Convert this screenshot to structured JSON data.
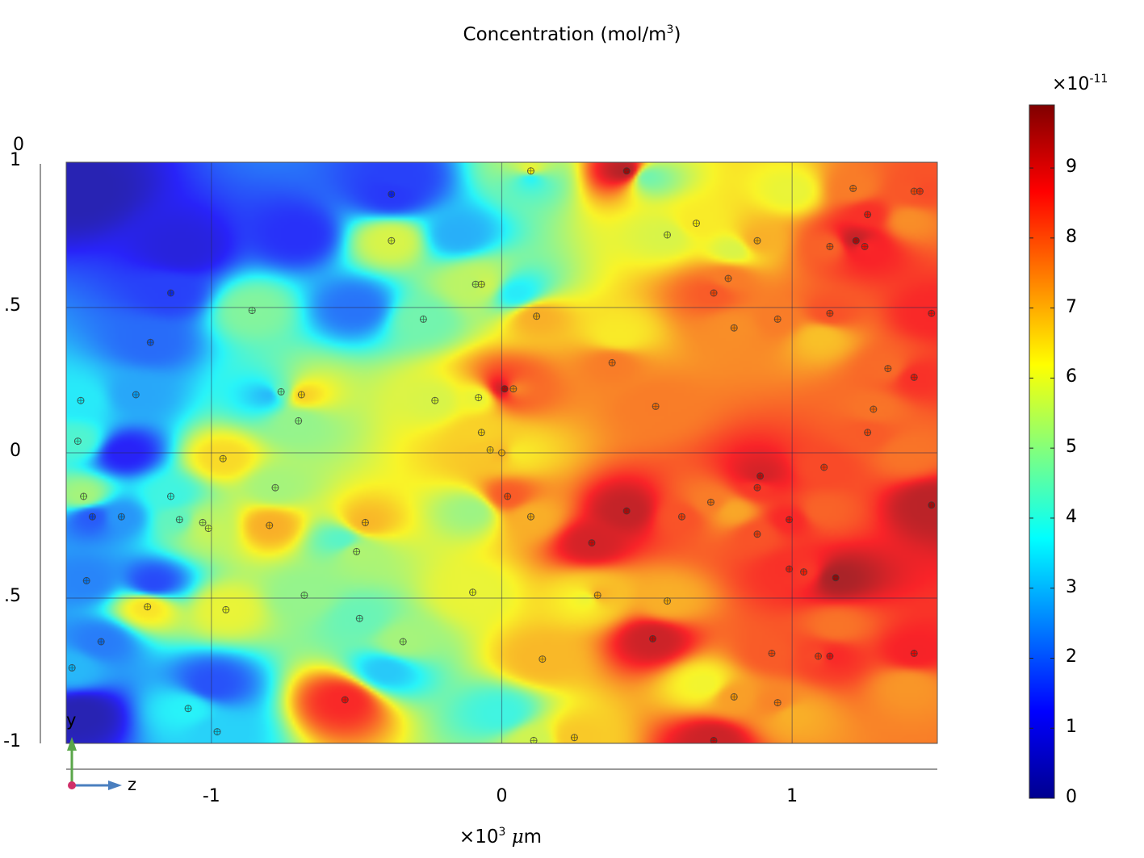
{
  "title": "Concentration (mol/m",
  "title_sup": "3",
  "title_tail": ")",
  "y_axis": {
    "top_label": "0",
    "ticks": [
      {
        "label": "1",
        "value": 1
      },
      {
        "label": ".5",
        "value": 0.5
      },
      {
        "label": "0",
        "value": 0
      },
      {
        "label": ".5",
        "value": -0.5
      },
      {
        "label": "-1",
        "value": -1
      }
    ]
  },
  "x_axis": {
    "ticks": [
      {
        "label": "-1",
        "value": -1
      },
      {
        "label": "0",
        "value": 0
      },
      {
        "label": "1",
        "value": 1
      }
    ],
    "unit_prefix": "×10",
    "unit_sup": "3",
    "unit_symbol": "μ",
    "unit_suffix": "m"
  },
  "colorbar": {
    "multiplier": "×10",
    "multiplier_sup": "-11",
    "ticks": [
      "0",
      "1",
      "2",
      "3",
      "4",
      "5",
      "6",
      "7",
      "8",
      "9"
    ],
    "range": [
      0,
      9.9
    ],
    "colormap": "jet"
  },
  "axes_triad": {
    "y_label": "y",
    "z_label": "z",
    "y_color": "#5aa64a",
    "z_color": "#4a7fbf"
  },
  "chart_data": {
    "type": "heatmap",
    "title": "Concentration (mol/m³)",
    "xlabel": "×10³ μm",
    "ylabel": "",
    "xlim": [
      -1.5,
      1.5
    ],
    "ylim": [
      -1,
      1
    ],
    "value_scale": "×10^-11",
    "colorbar_range": [
      0,
      9.9
    ],
    "grid": true,
    "field_samples": [
      {
        "x": -1.45,
        "y": 0.9,
        "v": 0.4
      },
      {
        "x": -1.45,
        "y": -0.9,
        "v": 0.4
      },
      {
        "x": -1.1,
        "y": 0.7,
        "v": 0.9
      },
      {
        "x": -0.7,
        "y": 0.75,
        "v": 1.4
      },
      {
        "x": -0.35,
        "y": 0.95,
        "v": 1.6
      },
      {
        "x": -0.5,
        "y": 0.5,
        "v": 2.2
      },
      {
        "x": -1.3,
        "y": 0.0,
        "v": 1.2
      },
      {
        "x": -1.2,
        "y": -0.45,
        "v": 1.7
      },
      {
        "x": -1.0,
        "y": -0.8,
        "v": 1.8
      },
      {
        "x": -0.8,
        "y": 0.2,
        "v": 3.0
      },
      {
        "x": -0.55,
        "y": -0.3,
        "v": 4.3
      },
      {
        "x": -0.4,
        "y": -0.75,
        "v": 3.2
      },
      {
        "x": -0.15,
        "y": 0.75,
        "v": 2.9
      },
      {
        "x": 0.05,
        "y": 0.55,
        "v": 3.6
      },
      {
        "x": 0.1,
        "y": 0.95,
        "v": 3.6
      },
      {
        "x": 0.0,
        "y": -0.9,
        "v": 4.0
      },
      {
        "x": 0.05,
        "y": 0.0,
        "v": 6.3
      },
      {
        "x": -0.1,
        "y": -0.2,
        "v": 5.1
      },
      {
        "x": 0.3,
        "y": -0.5,
        "v": 6.0
      },
      {
        "x": 0.4,
        "y": 0.4,
        "v": 6.3
      },
      {
        "x": 0.5,
        "y": 0.95,
        "v": 4.6
      },
      {
        "x": 0.8,
        "y": 0.7,
        "v": 5.8
      },
      {
        "x": 0.8,
        "y": -0.2,
        "v": 7.1
      },
      {
        "x": 0.7,
        "y": -0.8,
        "v": 6.1
      },
      {
        "x": 1.0,
        "y": 0.9,
        "v": 6.0
      },
      {
        "x": 1.1,
        "y": 0.4,
        "v": 6.8
      },
      {
        "x": 1.1,
        "y": -0.2,
        "v": 7.9
      },
      {
        "x": 1.15,
        "y": -0.6,
        "v": 7.7
      },
      {
        "x": 1.4,
        "y": 0.8,
        "v": 7.4
      },
      {
        "x": 1.4,
        "y": 0.0,
        "v": 7.7
      },
      {
        "x": 1.4,
        "y": -0.8,
        "v": 7.3
      },
      {
        "x": 1.0,
        "y": -0.9,
        "v": 7.0
      }
    ],
    "probe_points": [
      {
        "x": -0.38,
        "y": 0.89,
        "v": 1.5
      },
      {
        "x": -0.38,
        "y": 0.73,
        "v": 5.8
      },
      {
        "x": -1.14,
        "y": 0.55,
        "v": 1.6
      },
      {
        "x": -0.86,
        "y": 0.49,
        "v": 4.8
      },
      {
        "x": -1.21,
        "y": 0.38,
        "v": 2.1
      },
      {
        "x": -1.26,
        "y": 0.2,
        "v": 2.8
      },
      {
        "x": -1.45,
        "y": 0.18,
        "v": 3.6
      },
      {
        "x": -1.46,
        "y": 0.04,
        "v": 4.2
      },
      {
        "x": -0.76,
        "y": 0.21,
        "v": 4.6
      },
      {
        "x": -0.69,
        "y": 0.2,
        "v": 6.6
      },
      {
        "x": -0.7,
        "y": 0.11,
        "v": 5.0
      },
      {
        "x": -0.96,
        "y": -0.02,
        "v": 6.5
      },
      {
        "x": -1.44,
        "y": -0.15,
        "v": 5.2
      },
      {
        "x": -1.41,
        "y": -0.22,
        "v": 1.9
      },
      {
        "x": -1.31,
        "y": -0.22,
        "v": 2.6
      },
      {
        "x": -1.14,
        "y": -0.15,
        "v": 4.0
      },
      {
        "x": -1.11,
        "y": -0.23,
        "v": 4.4
      },
      {
        "x": -1.03,
        "y": -0.24,
        "v": 5.4
      },
      {
        "x": -1.01,
        "y": -0.26,
        "v": 5.6
      },
      {
        "x": -0.8,
        "y": -0.25,
        "v": 7.0
      },
      {
        "x": -0.78,
        "y": -0.12,
        "v": 5.2
      },
      {
        "x": -0.47,
        "y": -0.24,
        "v": 6.9
      },
      {
        "x": -0.5,
        "y": -0.34,
        "v": 5.3
      },
      {
        "x": -1.43,
        "y": -0.44,
        "v": 2.4
      },
      {
        "x": -1.22,
        "y": -0.53,
        "v": 6.4
      },
      {
        "x": -0.95,
        "y": -0.54,
        "v": 6.0
      },
      {
        "x": -0.68,
        "y": -0.49,
        "v": 5.0
      },
      {
        "x": -0.49,
        "y": -0.57,
        "v": 4.5
      },
      {
        "x": -0.34,
        "y": -0.65,
        "v": 5.2
      },
      {
        "x": -1.38,
        "y": -0.65,
        "v": 2.3
      },
      {
        "x": -1.48,
        "y": -0.74,
        "v": 3.0
      },
      {
        "x": -1.08,
        "y": -0.88,
        "v": 3.7
      },
      {
        "x": -0.54,
        "y": -0.85,
        "v": 8.6
      },
      {
        "x": -0.98,
        "y": -0.96,
        "v": 3.3
      },
      {
        "x": -0.27,
        "y": 0.46,
        "v": 4.6
      },
      {
        "x": -0.23,
        "y": 0.18,
        "v": 5.8
      },
      {
        "x": -0.09,
        "y": 0.58,
        "v": 5.4
      },
      {
        "x": -0.07,
        "y": 0.58,
        "v": 5.7
      },
      {
        "x": -0.08,
        "y": 0.19,
        "v": 6.0
      },
      {
        "x": -0.07,
        "y": 0.07,
        "v": 6.6
      },
      {
        "x": -0.04,
        "y": 0.01,
        "v": 6.7
      },
      {
        "x": 0.0,
        "y": 0.0,
        "v": 6.9
      },
      {
        "x": 0.01,
        "y": 0.22,
        "v": 9.3
      },
      {
        "x": 0.04,
        "y": 0.22,
        "v": 7.4
      },
      {
        "x": 0.02,
        "y": -0.15,
        "v": 8.0
      },
      {
        "x": 0.1,
        "y": -0.22,
        "v": 7.0
      },
      {
        "x": -0.1,
        "y": -0.48,
        "v": 6.0
      },
      {
        "x": 0.12,
        "y": 0.47,
        "v": 7.0
      },
      {
        "x": 0.1,
        "y": 0.97,
        "v": 6.2
      },
      {
        "x": 0.43,
        "y": 0.97,
        "v": 9.5
      },
      {
        "x": 0.14,
        "y": -0.71,
        "v": 6.9
      },
      {
        "x": 0.11,
        "y": -0.99,
        "v": 5.7
      },
      {
        "x": 0.25,
        "y": -0.98,
        "v": 6.7
      },
      {
        "x": 0.31,
        "y": -0.31,
        "v": 9.1
      },
      {
        "x": 0.33,
        "y": -0.49,
        "v": 7.0
      },
      {
        "x": 0.38,
        "y": 0.31,
        "v": 7.6
      },
      {
        "x": 0.43,
        "y": -0.2,
        "v": 9.3
      },
      {
        "x": 0.52,
        "y": -0.64,
        "v": 9.2
      },
      {
        "x": 0.53,
        "y": 0.16,
        "v": 7.6
      },
      {
        "x": 0.57,
        "y": -0.51,
        "v": 7.0
      },
      {
        "x": 0.57,
        "y": 0.75,
        "v": 5.8
      },
      {
        "x": 0.67,
        "y": 0.79,
        "v": 6.3
      },
      {
        "x": 0.62,
        "y": -0.22,
        "v": 8.1
      },
      {
        "x": 0.72,
        "y": -0.17,
        "v": 7.6
      },
      {
        "x": 0.73,
        "y": -0.99,
        "v": 9.2
      },
      {
        "x": 0.73,
        "y": 0.55,
        "v": 8.0
      },
      {
        "x": 0.78,
        "y": 0.6,
        "v": 7.6
      },
      {
        "x": 0.8,
        "y": 0.43,
        "v": 7.4
      },
      {
        "x": 0.8,
        "y": -0.84,
        "v": 7.2
      },
      {
        "x": 0.88,
        "y": 0.73,
        "v": 7.0
      },
      {
        "x": 0.88,
        "y": -0.28,
        "v": 8.1
      },
      {
        "x": 0.88,
        "y": -0.12,
        "v": 8.4
      },
      {
        "x": 0.89,
        "y": -0.08,
        "v": 9.1
      },
      {
        "x": 0.93,
        "y": -0.69,
        "v": 8.0
      },
      {
        "x": 0.95,
        "y": 0.46,
        "v": 7.6
      },
      {
        "x": 0.95,
        "y": -0.86,
        "v": 7.5
      },
      {
        "x": 0.99,
        "y": -0.23,
        "v": 8.6
      },
      {
        "x": 0.99,
        "y": -0.4,
        "v": 8.5
      },
      {
        "x": 1.04,
        "y": -0.41,
        "v": 8.4
      },
      {
        "x": 1.09,
        "y": -0.7,
        "v": 8.2
      },
      {
        "x": 1.11,
        "y": -0.05,
        "v": 8.2
      },
      {
        "x": 1.13,
        "y": 0.71,
        "v": 7.9
      },
      {
        "x": 1.13,
        "y": 0.48,
        "v": 8.1
      },
      {
        "x": 1.13,
        "y": -0.7,
        "v": 8.6
      },
      {
        "x": 1.15,
        "y": -0.43,
        "v": 9.6
      },
      {
        "x": 1.21,
        "y": 0.91,
        "v": 7.6
      },
      {
        "x": 1.22,
        "y": 0.73,
        "v": 9.3
      },
      {
        "x": 1.25,
        "y": 0.71,
        "v": 8.6
      },
      {
        "x": 1.26,
        "y": 0.82,
        "v": 8.5
      },
      {
        "x": 1.26,
        "y": 0.07,
        "v": 8.0
      },
      {
        "x": 1.28,
        "y": 0.15,
        "v": 7.7
      },
      {
        "x": 1.33,
        "y": 0.29,
        "v": 7.8
      },
      {
        "x": 1.42,
        "y": -0.69,
        "v": 8.7
      },
      {
        "x": 1.42,
        "y": 0.26,
        "v": 8.5
      },
      {
        "x": 1.42,
        "y": 0.9,
        "v": 8.0
      },
      {
        "x": 1.44,
        "y": 0.9,
        "v": 8.2
      },
      {
        "x": 1.48,
        "y": 0.48,
        "v": 8.6
      },
      {
        "x": 1.48,
        "y": -0.18,
        "v": 9.4
      }
    ]
  }
}
